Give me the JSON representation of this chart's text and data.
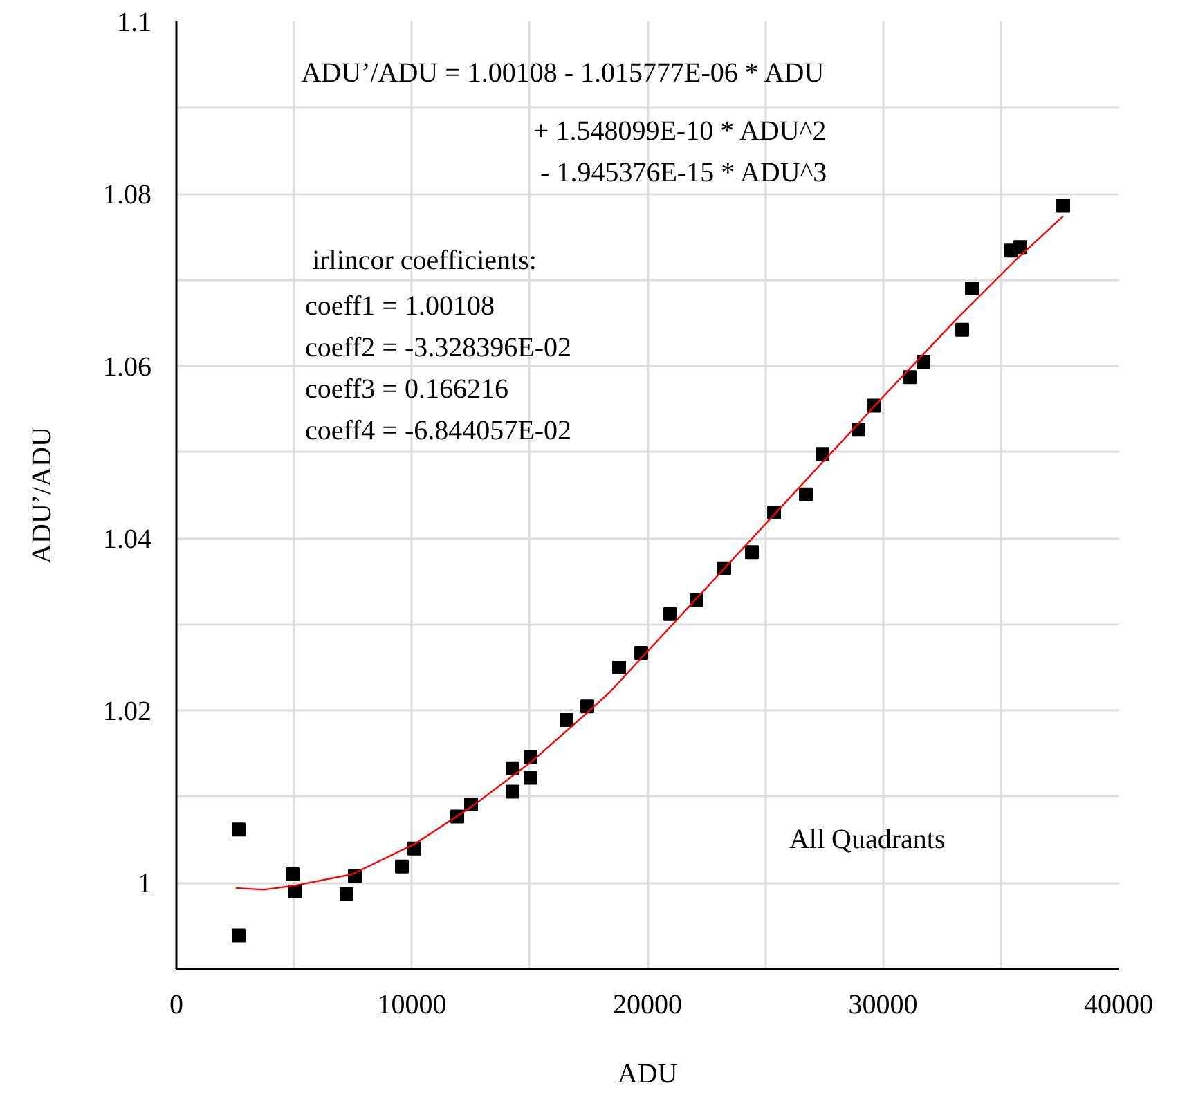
{
  "chart_data": {
    "type": "scatter",
    "xlabel": "ADU",
    "ylabel": "ADU’/ADU",
    "xlim": [
      0,
      40000
    ],
    "ylim": [
      0.99,
      1.1
    ],
    "xticks": [
      0,
      {
        "value": 5000,
        "label": null
      },
      10000,
      {
        "value": 15000,
        "label": null
      },
      20000,
      {
        "value": 25000,
        "label": null
      },
      30000,
      {
        "value": 35000,
        "label": null
      },
      40000
    ],
    "yticks": [
      {
        "value": 1.0,
        "label": "1"
      },
      {
        "value": 1.01,
        "label": null
      },
      1.02,
      {
        "value": 1.03,
        "label": null
      },
      1.04,
      {
        "value": 1.05,
        "label": null
      },
      1.06,
      {
        "value": 1.07,
        "label": null
      },
      1.08,
      {
        "value": 1.09,
        "label": null
      },
      1.1
    ],
    "grid": true,
    "series": [
      {
        "marker": "square",
        "color": "#000000",
        "x": [
          2643,
          2643,
          4934,
          5052,
          7225,
          7577,
          9575,
          10103,
          11924,
          12512,
          14274,
          14274,
          15037,
          15037,
          16565,
          17446,
          18797,
          19737,
          20970,
          22086,
          23261,
          24436,
          25376,
          26727,
          27432,
          28959,
          29605,
          31132,
          31720,
          33364,
          33776,
          35420,
          35831,
          37652
        ],
        "values": [
          1.0062,
          0.9939,
          1.001,
          0.999,
          0.9987,
          1.0008,
          1.0019,
          1.004,
          1.0077,
          1.0091,
          1.0133,
          1.0106,
          1.0146,
          1.0122,
          1.0189,
          1.0205,
          1.025,
          1.0267,
          1.0312,
          1.0328,
          1.0365,
          1.0384,
          1.043,
          1.0451,
          1.0498,
          1.0526,
          1.0554,
          1.0587,
          1.0605,
          1.0642,
          1.069,
          1.0734,
          1.0738,
          1.0786
        ]
      },
      {
        "type": "line",
        "marker": "none",
        "color": "#ff0000",
        "x": [
          2526,
          3701,
          5052,
          7460,
          10103,
          12512,
          15096,
          17622,
          18386,
          25259,
          30134,
          33071,
          35596,
          37652
        ],
        "values": [
          0.9994,
          0.9992,
          0.9997,
          1.001,
          1.0045,
          1.0088,
          1.0141,
          1.0202,
          1.0221,
          1.0424,
          1.0568,
          1.0653,
          1.0722,
          1.0774
        ]
      }
    ],
    "annotations": [
      "ADU’/ADU = 1.00108 -  1.015777E-06 * ADU",
      "+ 1.548099E-10 * ADU^2",
      " - 1.945376E-15 * ADU^3",
      "irlincor coefficients:",
      "coeff1 = 1.00108",
      "coeff2 = -3.328396E-02",
      "coeff3 = 0.166216",
      "coeff4 = -6.844057E-02",
      "All Quadrants"
    ]
  }
}
